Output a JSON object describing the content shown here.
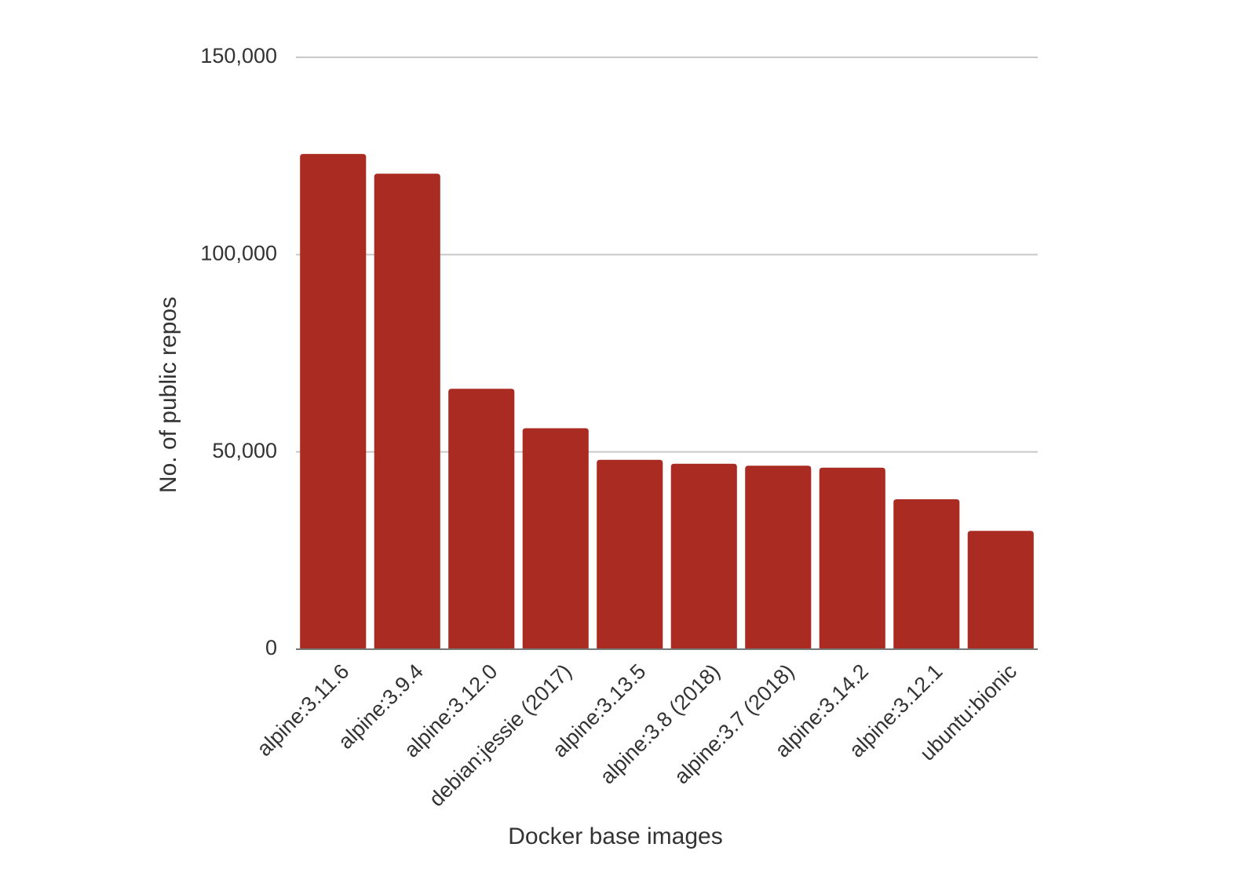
{
  "chart_data": {
    "type": "bar",
    "x_label": "Docker base images",
    "y_label": "No. of public repos",
    "categories": [
      "alpine:3.11.6",
      "alpine:3.9.4",
      "alpine:3.12.0",
      "debian:jessie (2017)",
      "alpine:3.13.5",
      "alpine:3.8 (2018)",
      "alpine:3.7 (2018)",
      "alpine:3.14.2",
      "alpine:3.12.1",
      "ubuntu:bionic"
    ],
    "values": [
      125500,
      120500,
      66000,
      56000,
      48000,
      47000,
      46500,
      46000,
      38000,
      30000
    ],
    "color": "#a92b22",
    "ylim": [
      0,
      150000
    ],
    "yticks": [
      0,
      {
        "value": 50000,
        "label": "50,000"
      },
      {
        "value": 100000,
        "label": "100,000"
      },
      {
        "value": 150000,
        "label": "150,000"
      }
    ],
    "grid": true
  }
}
